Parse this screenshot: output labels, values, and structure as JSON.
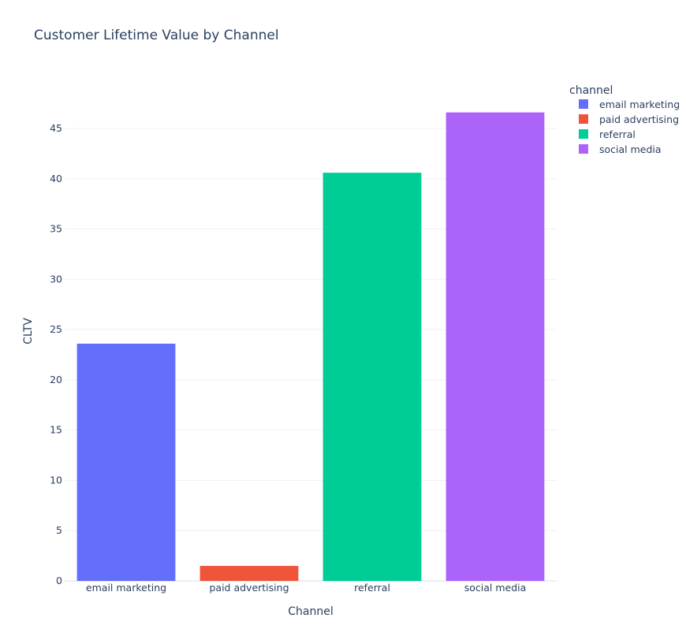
{
  "chart_data": {
    "type": "bar",
    "title": "Customer Lifetime Value by Channel",
    "xlabel": "Channel",
    "ylabel": "CLTV",
    "categories": [
      "email marketing",
      "paid advertising",
      "referral",
      "social media"
    ],
    "values": [
      23.6,
      1.5,
      40.6,
      46.6
    ],
    "colors": [
      "#636efa",
      "#ef553b",
      "#00cc96",
      "#ab63fa"
    ],
    "ylim": [
      0,
      49
    ],
    "yticks": [
      0,
      5,
      10,
      15,
      20,
      25,
      30,
      35,
      40,
      45
    ],
    "grid": true,
    "legend": {
      "title": "channel",
      "position": "top-right",
      "items": [
        "email marketing",
        "paid advertising",
        "referral",
        "social media"
      ]
    }
  }
}
